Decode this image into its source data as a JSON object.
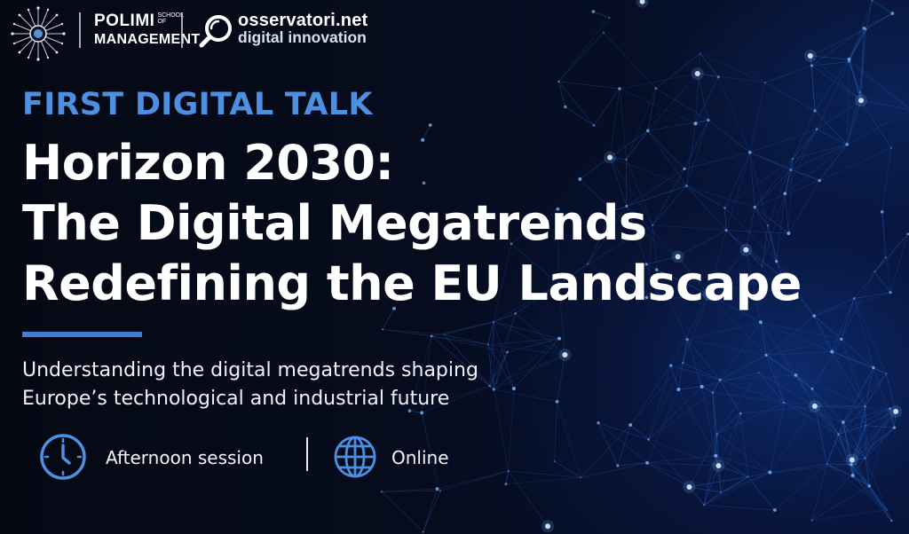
{
  "logos": {
    "polimi_line1": "POLIMI",
    "polimi_school": "SCHOOL OF",
    "polimi_line2": "MANAGEMENT",
    "osservatori_line1": "osservatori.net",
    "osservatori_line2": "digital innovation",
    "emblem_icon": "circuit-emblem-icon",
    "osservatori_icon": "magnifier-icon"
  },
  "kicker": "FIRST DIGITAL TALK",
  "title_lines": [
    "Horizon 2030:",
    "The Digital Megatrends",
    "Redefining the EU Landscape"
  ],
  "subtitle_lines": [
    "Understanding the digital megatrends shaping",
    "Europe’s technological and industrial future"
  ],
  "info": [
    {
      "icon": "clock-icon",
      "label": "Afternoon session"
    },
    {
      "icon": "globe-icon",
      "label": "Online"
    }
  ],
  "colors": {
    "accent": "#4d8fe0",
    "background": "#050a18",
    "network_line": "#2f6fd6",
    "network_node": "#7fbfff"
  }
}
